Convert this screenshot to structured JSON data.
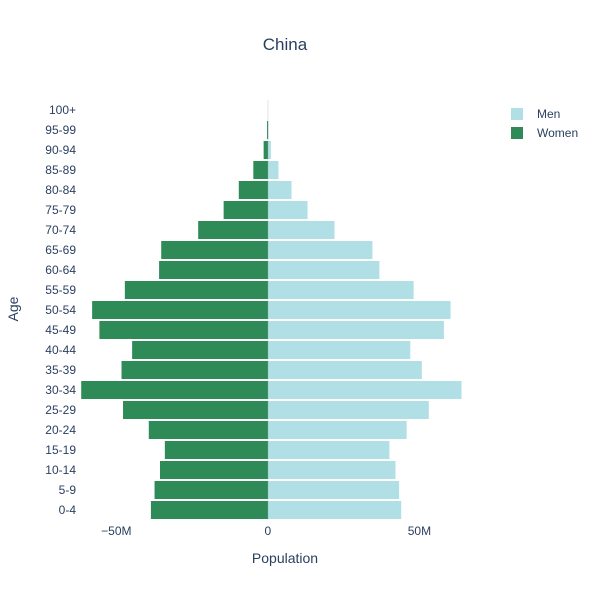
{
  "chart_data": {
    "type": "bar",
    "orientation": "horizontal",
    "title": "China",
    "xlabel": "Population",
    "ylabel": "Age",
    "xlim": [
      -62000000,
      70000000
    ],
    "x_ticks": [
      -50000000,
      0,
      50000000
    ],
    "x_tick_labels": [
      "−50M",
      "0",
      "50M"
    ],
    "grid": false,
    "legend_position": "top-right",
    "categories": [
      "0-4",
      "5-9",
      "10-14",
      "15-19",
      "20-24",
      "25-29",
      "30-34",
      "35-39",
      "40-44",
      "45-49",
      "50-54",
      "55-59",
      "60-64",
      "65-69",
      "70-74",
      "75-79",
      "80-84",
      "85-89",
      "90-94",
      "95-99",
      "100+"
    ],
    "series": [
      {
        "name": "Men",
        "color": "#b0e0e6",
        "values": [
          44000000,
          43300000,
          42100000,
          40100000,
          45800000,
          53100000,
          63900000,
          50800000,
          47000000,
          58100000,
          60300000,
          48100000,
          36800000,
          34500000,
          22000000,
          13100000,
          7800000,
          3500000,
          1000000,
          200000,
          0
        ]
      },
      {
        "name": "Women",
        "color": "#2e8b57",
        "values": [
          -38600000,
          -37400000,
          -35600000,
          -34000000,
          -39300000,
          -47800000,
          -61600000,
          -48300000,
          -44800000,
          -55600000,
          -58000000,
          -47200000,
          -35900000,
          -35200000,
          -23000000,
          -14600000,
          -9600000,
          -4800000,
          -1400000,
          -300000,
          0
        ]
      }
    ]
  }
}
